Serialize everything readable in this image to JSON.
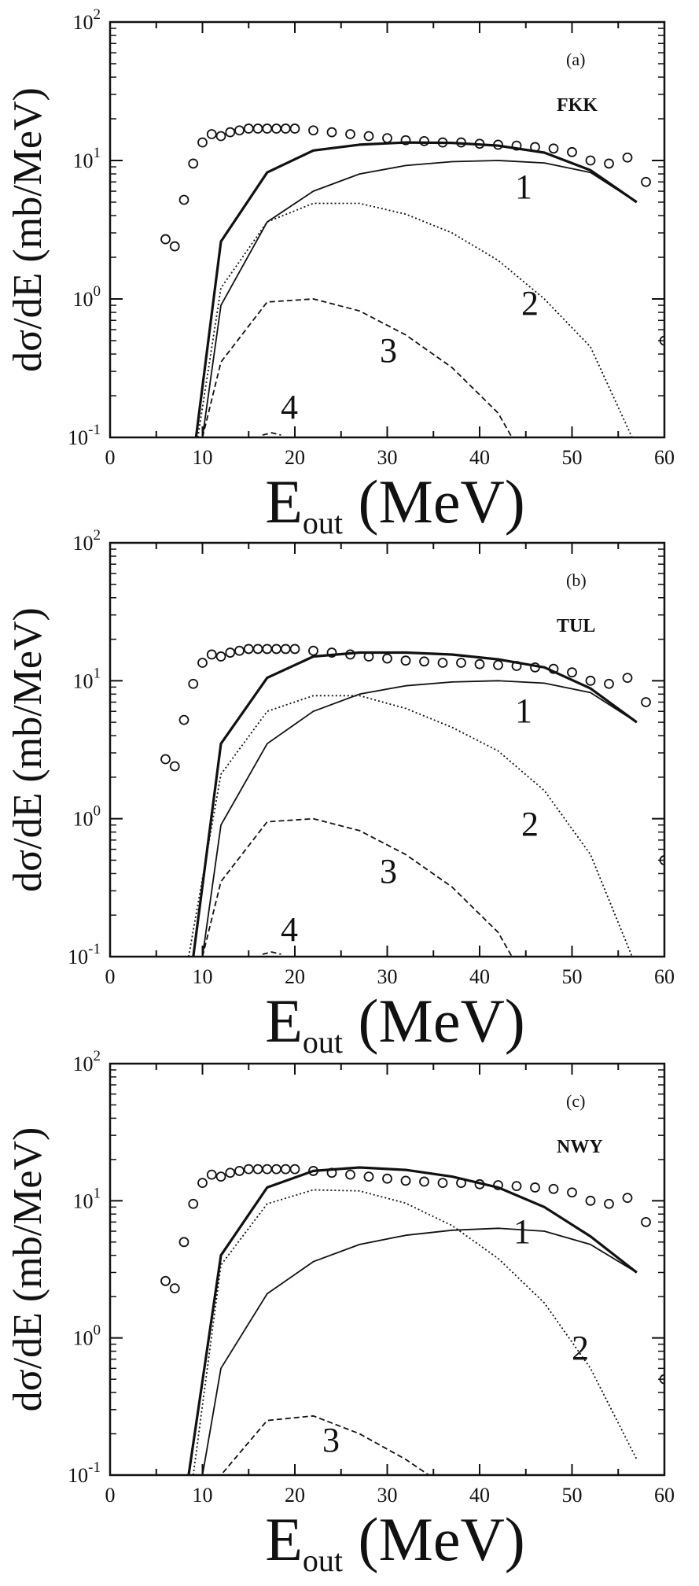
{
  "chart_data": [
    {
      "type": "line",
      "panel_label": "(a)",
      "model": "FKK",
      "xlabel": "E",
      "xlabel_sub": "out",
      "xlabel_unit": "(MeV)",
      "ylabel": "dσ/dE (mb/MeV)",
      "xlim": [
        0,
        60
      ],
      "ylim": [
        0.1,
        100
      ],
      "yscale": "log",
      "xticks": [
        "0",
        "10",
        "20",
        "30",
        "40",
        "50",
        "60"
      ],
      "yticks": [
        {
          "value": 0.1,
          "base": "10",
          "exp": "-1"
        },
        {
          "value": 1,
          "base": "10",
          "exp": "0"
        },
        {
          "value": 10,
          "base": "10",
          "exp": "1"
        },
        {
          "value": 100,
          "base": "10",
          "exp": "2"
        }
      ],
      "markers": {
        "x": [
          6,
          7,
          8,
          9,
          10,
          11,
          12,
          13,
          14,
          15,
          16,
          17,
          18,
          19,
          20,
          22,
          24,
          26,
          28,
          30,
          32,
          34,
          36,
          38,
          40,
          42,
          44,
          46,
          48,
          50,
          52,
          54,
          56,
          58,
          60
        ],
        "y": [
          2.7,
          2.4,
          5.2,
          9.5,
          13.5,
          15.5,
          15.0,
          16.0,
          16.5,
          17.0,
          17.0,
          17.0,
          17.0,
          17.0,
          17.0,
          16.5,
          16.0,
          15.5,
          15.0,
          14.5,
          14.0,
          13.8,
          13.5,
          13.5,
          13.2,
          13.0,
          12.8,
          12.5,
          12.2,
          11.5,
          10.0,
          9.5,
          10.5,
          7.0,
          0.5
        ]
      },
      "series": [
        {
          "label": "",
          "style": "thick",
          "x": [
            9.3,
            12,
            17,
            22,
            27,
            32,
            37,
            42,
            47,
            52,
            57
          ],
          "y": [
            0.1,
            2.6,
            8.2,
            11.8,
            13.0,
            13.5,
            13.4,
            12.8,
            11.4,
            8.5,
            5.0
          ]
        },
        {
          "label": "1",
          "style": "thin",
          "x": [
            10,
            12,
            17,
            22,
            27,
            32,
            37,
            42,
            47,
            52,
            57
          ],
          "y": [
            0.1,
            0.9,
            3.6,
            6.0,
            8.0,
            9.2,
            9.8,
            10.0,
            9.6,
            8.2,
            5.0
          ]
        },
        {
          "label": "2",
          "style": "dotted",
          "x": [
            9.5,
            12,
            17,
            22,
            27,
            32,
            37,
            42,
            47,
            52,
            56.5
          ],
          "y": [
            0.1,
            1.2,
            3.6,
            4.9,
            4.9,
            4.1,
            3.0,
            1.9,
            1.0,
            0.45,
            0.1
          ]
        },
        {
          "label": "3",
          "style": "dashed",
          "x": [
            10,
            12,
            17,
            22,
            27,
            32,
            37,
            42,
            43.5
          ],
          "y": [
            0.1,
            0.35,
            0.95,
            1.0,
            0.82,
            0.55,
            0.32,
            0.15,
            0.1
          ]
        },
        {
          "label": "4",
          "style": "dashed",
          "x": [
            16.5,
            17.5,
            18.5
          ],
          "y": [
            0.104,
            0.108,
            0.104
          ]
        }
      ]
    },
    {
      "type": "line",
      "panel_label": "(b)",
      "model": "TUL",
      "xlabel": "E",
      "xlabel_sub": "out",
      "xlabel_unit": "(MeV)",
      "ylabel": "dσ/dE (mb/MeV)",
      "xlim": [
        0,
        60
      ],
      "ylim": [
        0.1,
        100
      ],
      "yscale": "log",
      "xticks": [
        "0",
        "10",
        "20",
        "30",
        "40",
        "50",
        "60"
      ],
      "yticks": [
        {
          "value": 0.1,
          "base": "10",
          "exp": "-1"
        },
        {
          "value": 1,
          "base": "10",
          "exp": "0"
        },
        {
          "value": 10,
          "base": "10",
          "exp": "1"
        },
        {
          "value": 100,
          "base": "10",
          "exp": "2"
        }
      ],
      "markers": {
        "x": [
          6,
          7,
          8,
          9,
          10,
          11,
          12,
          13,
          14,
          15,
          16,
          17,
          18,
          19,
          20,
          22,
          24,
          26,
          28,
          30,
          32,
          34,
          36,
          38,
          40,
          42,
          44,
          46,
          48,
          50,
          52,
          54,
          56,
          58,
          60
        ],
        "y": [
          2.7,
          2.4,
          5.2,
          9.5,
          13.5,
          15.5,
          15.0,
          16.0,
          16.5,
          17.0,
          17.0,
          17.0,
          17.0,
          17.0,
          17.0,
          16.5,
          16.0,
          15.5,
          15.0,
          14.5,
          14.0,
          13.8,
          13.5,
          13.5,
          13.2,
          13.0,
          12.8,
          12.5,
          12.2,
          11.5,
          10.0,
          9.5,
          10.5,
          7.0,
          0.5
        ]
      },
      "series": [
        {
          "label": "",
          "style": "thick",
          "x": [
            9,
            12,
            17,
            22,
            27,
            32,
            37,
            42,
            47,
            52,
            57
          ],
          "y": [
            0.1,
            3.5,
            10.5,
            15.0,
            16.0,
            16.0,
            15.5,
            14.3,
            12.5,
            8.8,
            5.0
          ]
        },
        {
          "label": "1",
          "style": "thin",
          "x": [
            10,
            12,
            17,
            22,
            27,
            32,
            37,
            42,
            47,
            52,
            57
          ],
          "y": [
            0.1,
            0.9,
            3.5,
            6.0,
            8.0,
            9.2,
            9.8,
            10.0,
            9.6,
            8.2,
            5.0
          ]
        },
        {
          "label": "2",
          "style": "dotted",
          "x": [
            8.5,
            12,
            17,
            22,
            27,
            32,
            37,
            42,
            47,
            52,
            56.5
          ],
          "y": [
            0.1,
            2.1,
            6.0,
            7.8,
            7.8,
            6.3,
            4.6,
            3.1,
            1.6,
            0.55,
            0.1
          ]
        },
        {
          "label": "3",
          "style": "dashed",
          "x": [
            10,
            12,
            17,
            22,
            27,
            32,
            37,
            42,
            43.5
          ],
          "y": [
            0.1,
            0.35,
            0.95,
            1.0,
            0.82,
            0.55,
            0.32,
            0.15,
            0.1
          ]
        },
        {
          "label": "4",
          "style": "dashed",
          "x": [
            16.5,
            17.5,
            18.5
          ],
          "y": [
            0.104,
            0.108,
            0.104
          ]
        }
      ]
    },
    {
      "type": "line",
      "panel_label": "(c)",
      "model": "NWY",
      "xlabel": "E",
      "xlabel_sub": "out",
      "xlabel_unit": "(MeV)",
      "ylabel": "dσ/dE (mb/MeV)",
      "xlim": [
        0,
        60
      ],
      "ylim": [
        0.1,
        100
      ],
      "yscale": "log",
      "xticks": [
        "0",
        "10",
        "20",
        "30",
        "40",
        "50",
        "60"
      ],
      "yticks": [
        {
          "value": 0.1,
          "base": "10",
          "exp": "-1"
        },
        {
          "value": 1,
          "base": "10",
          "exp": "0"
        },
        {
          "value": 10,
          "base": "10",
          "exp": "1"
        },
        {
          "value": 100,
          "base": "10",
          "exp": "2"
        }
      ],
      "markers": {
        "x": [
          6,
          7,
          8,
          9,
          10,
          11,
          12,
          13,
          14,
          15,
          16,
          17,
          18,
          19,
          20,
          22,
          24,
          26,
          28,
          30,
          32,
          34,
          36,
          38,
          40,
          42,
          44,
          46,
          48,
          50,
          52,
          54,
          56,
          58,
          60
        ],
        "y": [
          2.6,
          2.3,
          5.0,
          9.5,
          13.5,
          15.5,
          15.0,
          16.0,
          16.5,
          17.0,
          17.0,
          17.0,
          17.0,
          17.0,
          17.0,
          16.5,
          16.0,
          15.5,
          15.0,
          14.5,
          14.0,
          13.8,
          13.5,
          13.5,
          13.2,
          13.0,
          12.8,
          12.5,
          12.2,
          11.5,
          10.0,
          9.5,
          10.5,
          7.0,
          0.5
        ]
      },
      "series": [
        {
          "label": "",
          "style": "thick",
          "x": [
            8.5,
            12,
            17,
            22,
            27,
            32,
            37,
            42,
            47,
            52,
            57
          ],
          "y": [
            0.1,
            4.0,
            12.5,
            16.5,
            17.5,
            16.8,
            15.0,
            12.5,
            9.0,
            5.5,
            3.0
          ]
        },
        {
          "label": "1",
          "style": "thin",
          "x": [
            10,
            12,
            17,
            22,
            27,
            32,
            37,
            42,
            47,
            52,
            57
          ],
          "y": [
            0.1,
            0.6,
            2.1,
            3.6,
            4.8,
            5.6,
            6.1,
            6.3,
            6.0,
            4.8,
            3.0
          ]
        },
        {
          "label": "2",
          "style": "dotted",
          "x": [
            9,
            12,
            17,
            22,
            27,
            32,
            37,
            42,
            47,
            52,
            57
          ],
          "y": [
            0.1,
            3.4,
            9.5,
            12.0,
            11.8,
            9.6,
            6.6,
            3.8,
            1.8,
            0.6,
            0.13
          ]
        },
        {
          "label": "3",
          "style": "dashed",
          "x": [
            10,
            12,
            17,
            22,
            27,
            32,
            34.5
          ],
          "y": [
            0.08,
            0.1,
            0.25,
            0.27,
            0.2,
            0.13,
            0.1
          ]
        }
      ]
    }
  ]
}
